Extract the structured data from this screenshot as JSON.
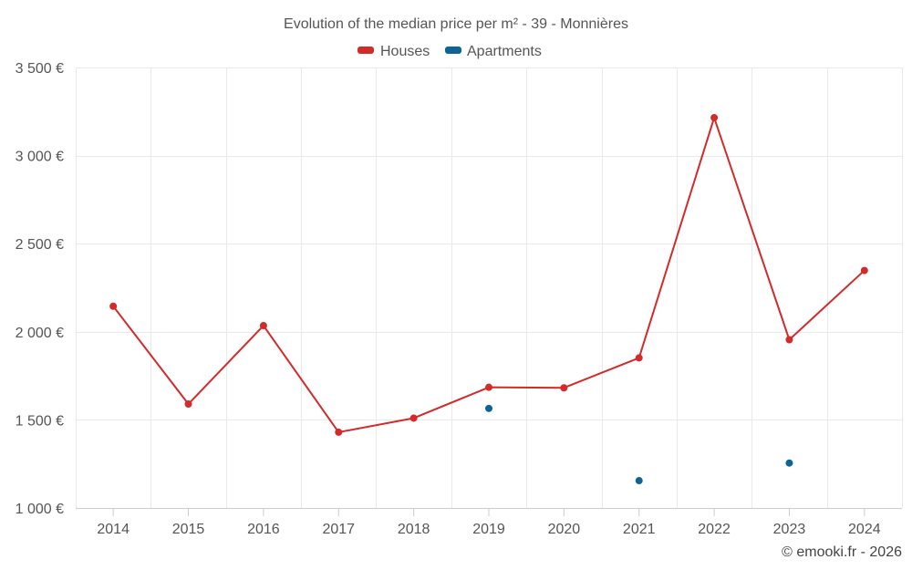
{
  "chart_data": {
    "type": "line",
    "title": "Evolution of the median price per m² - 39 - Monnières",
    "categories": [
      "2014",
      "2015",
      "2016",
      "2017",
      "2018",
      "2019",
      "2020",
      "2021",
      "2022",
      "2023",
      "2024"
    ],
    "series": [
      {
        "name": "Houses",
        "color": "#d32a2a",
        "values": [
          2145,
          1590,
          2035,
          1430,
          1510,
          1685,
          1682,
          1852,
          3215,
          1955,
          2348
        ]
      },
      {
        "name": "Apartments",
        "color": "#0f6496",
        "values": [
          null,
          null,
          null,
          null,
          null,
          1565,
          null,
          1155,
          null,
          1255,
          null
        ]
      }
    ],
    "ylim": [
      1000,
      3500
    ],
    "yticks": [
      1000,
      1500,
      2000,
      2500,
      3000,
      3500
    ],
    "ytick_labels": [
      "1 000 €",
      "1 500 €",
      "2 000 €",
      "2 500 €",
      "3 000 €",
      "3 500 €"
    ],
    "xlabel": "",
    "ylabel": "",
    "legend_position": "top-center",
    "grid": true
  },
  "credit": "© emooki.fr - 2026"
}
